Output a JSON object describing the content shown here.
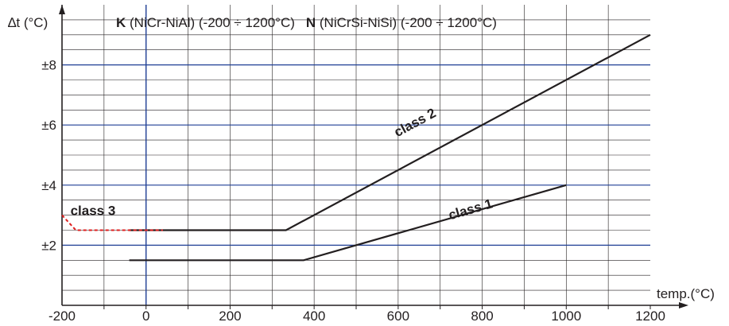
{
  "chart_data": {
    "type": "line",
    "title": {
      "k_bold": "K",
      "k_text": " (NiCr-NiAl) (-200 ÷ 1200°C)",
      "n_bold": "N",
      "n_text": " (NiCrSi-NiSi) (-200 ÷ 1200°C)"
    },
    "xlabel": "temp.(°C)",
    "ylabel": "∆t (°C)",
    "xlim": [
      -200,
      1200
    ],
    "ylim": [
      0,
      10
    ],
    "x_ticks": [
      -200,
      0,
      200,
      400,
      600,
      800,
      1000,
      1200
    ],
    "x_tick_labels": [
      "-200",
      "0",
      "200",
      "400",
      "600",
      "800",
      "1000",
      "1200"
    ],
    "y_ticks": [
      2,
      4,
      6,
      8
    ],
    "y_tick_labels": [
      "±2",
      "±4",
      "±6",
      "±8"
    ],
    "grid": true,
    "series": [
      {
        "name": "class 1",
        "style": "solid",
        "color": "#231f20",
        "points": [
          [
            -40,
            1.5
          ],
          [
            375,
            1.5
          ],
          [
            1000,
            4.0
          ]
        ]
      },
      {
        "name": "class 2",
        "style": "solid",
        "color": "#231f20",
        "points": [
          [
            -40,
            2.5
          ],
          [
            333,
            2.5
          ],
          [
            1200,
            9.0
          ]
        ]
      },
      {
        "name": "class 3",
        "style": "dashed",
        "color": "#e02020",
        "points": [
          [
            -200,
            3.0
          ],
          [
            -167,
            2.5
          ],
          [
            40,
            2.5
          ]
        ]
      }
    ],
    "colors": {
      "major_grid": "#1f3f95",
      "minor_grid": "#231f20",
      "axis": "#231f20",
      "text": "#231f20",
      "class3": "#e02020"
    }
  }
}
